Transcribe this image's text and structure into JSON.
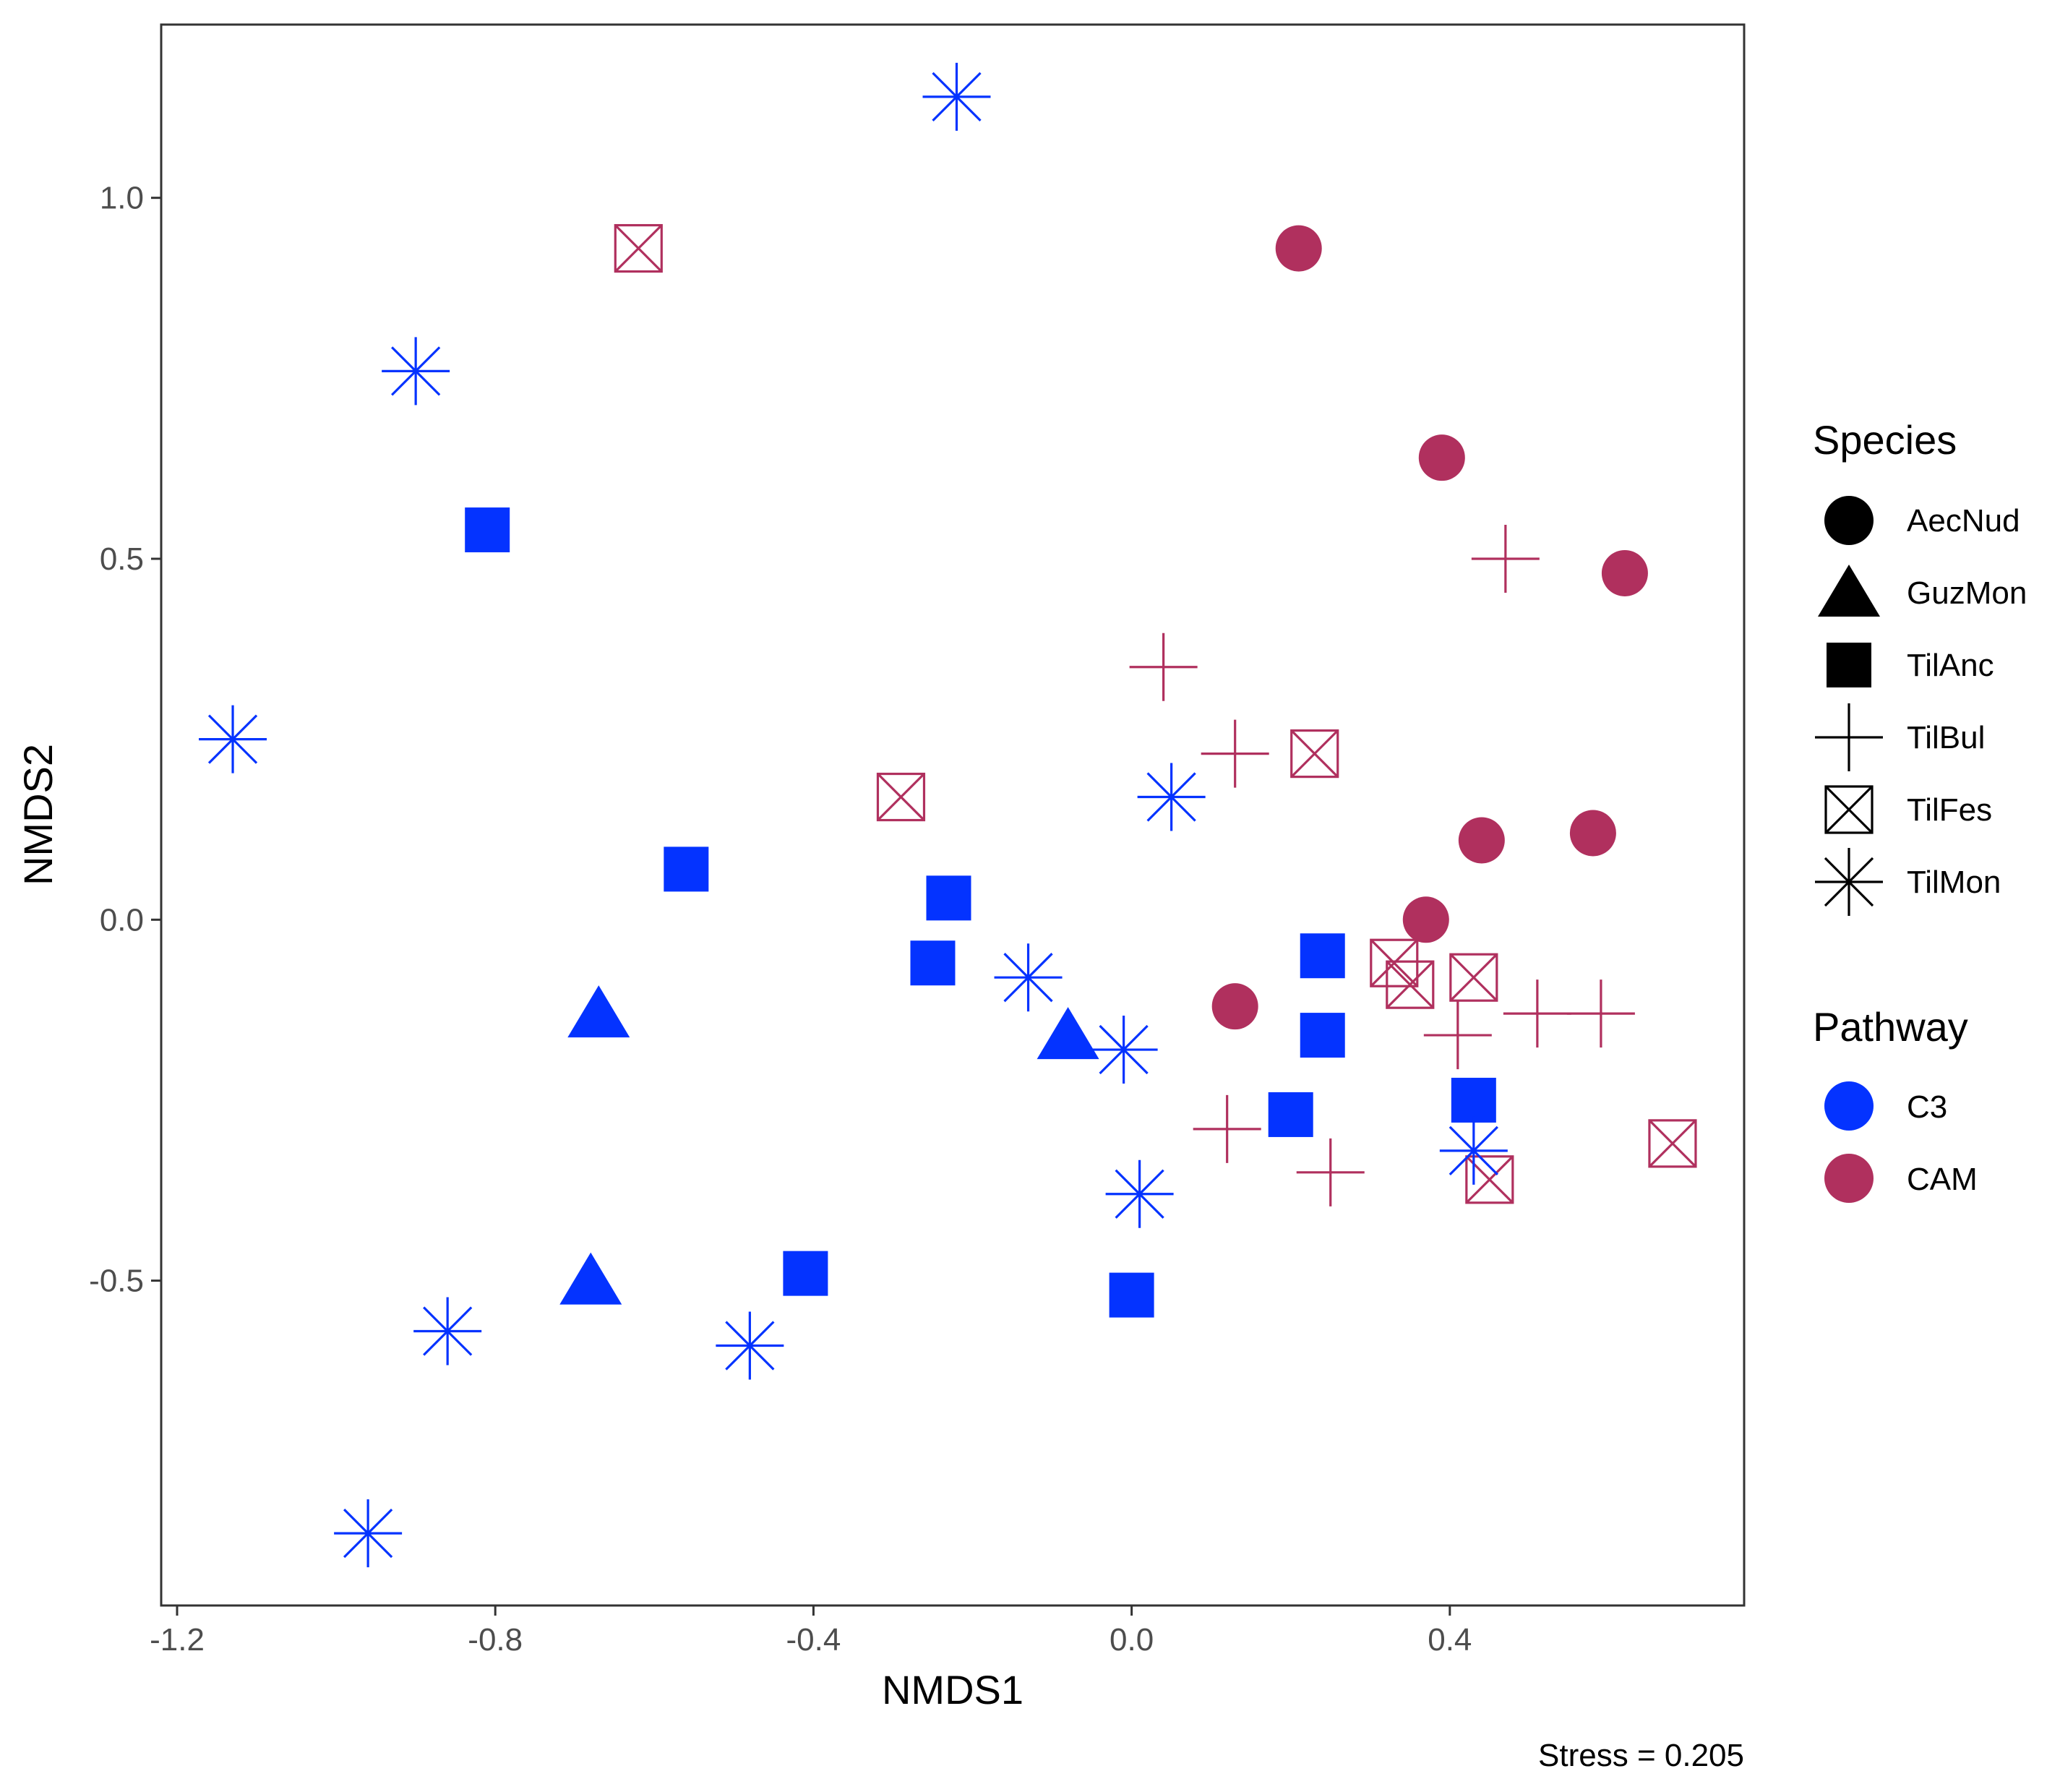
{
  "chart_data": {
    "type": "scatter",
    "title": "",
    "xlabel": "NMDS1",
    "ylabel": "NMDS2",
    "xlim": [
      -1.22,
      0.77
    ],
    "ylim": [
      -0.95,
      1.24
    ],
    "x_ticks": [
      -1.2,
      -0.8,
      -0.4,
      0.0,
      0.4
    ],
    "x_tick_labels": [
      "-1.2",
      "-0.8",
      "-0.4",
      "0.0",
      "0.4"
    ],
    "y_ticks": [
      -0.5,
      0.0,
      0.5,
      1.0
    ],
    "y_tick_labels": [
      "-0.5",
      "0.0",
      "0.5",
      "1.0"
    ],
    "grid": false,
    "annotation": "Stress = 0.205",
    "colors": {
      "C3": "#0433ff",
      "CAM": "#b0305e"
    },
    "legend": {
      "position": "right",
      "species_title": "Species",
      "species": [
        {
          "label": "AecNud",
          "shape": "circle"
        },
        {
          "label": "GuzMon",
          "shape": "triangle"
        },
        {
          "label": "TilAnc",
          "shape": "square"
        },
        {
          "label": "TilBul",
          "shape": "plus"
        },
        {
          "label": "TilFes",
          "shape": "boxx"
        },
        {
          "label": "TilMon",
          "shape": "asterisk"
        }
      ],
      "pathway_title": "Pathway",
      "pathways": [
        {
          "label": "C3",
          "color": "#0433ff"
        },
        {
          "label": "CAM",
          "color": "#b0305e"
        }
      ]
    },
    "points": [
      {
        "species": "AecNud",
        "pathway": "CAM",
        "x": 0.21,
        "y": 0.93
      },
      {
        "species": "AecNud",
        "pathway": "CAM",
        "x": 0.39,
        "y": 0.64
      },
      {
        "species": "AecNud",
        "pathway": "CAM",
        "x": 0.62,
        "y": 0.48
      },
      {
        "species": "AecNud",
        "pathway": "CAM",
        "x": 0.44,
        "y": 0.11
      },
      {
        "species": "AecNud",
        "pathway": "CAM",
        "x": 0.58,
        "y": 0.12
      },
      {
        "species": "AecNud",
        "pathway": "CAM",
        "x": 0.37,
        "y": 0.0
      },
      {
        "species": "AecNud",
        "pathway": "CAM",
        "x": 0.13,
        "y": -0.12
      },
      {
        "species": "GuzMon",
        "pathway": "C3",
        "x": -0.67,
        "y": -0.13
      },
      {
        "species": "GuzMon",
        "pathway": "C3",
        "x": -0.08,
        "y": -0.16
      },
      {
        "species": "GuzMon",
        "pathway": "C3",
        "x": -0.68,
        "y": -0.5
      },
      {
        "species": "TilAnc",
        "pathway": "C3",
        "x": -0.81,
        "y": 0.54
      },
      {
        "species": "TilAnc",
        "pathway": "C3",
        "x": -0.56,
        "y": 0.07
      },
      {
        "species": "TilAnc",
        "pathway": "C3",
        "x": -0.23,
        "y": 0.03
      },
      {
        "species": "TilAnc",
        "pathway": "C3",
        "x": -0.25,
        "y": -0.06
      },
      {
        "species": "TilAnc",
        "pathway": "C3",
        "x": 0.24,
        "y": -0.05
      },
      {
        "species": "TilAnc",
        "pathway": "C3",
        "x": 0.24,
        "y": -0.16
      },
      {
        "species": "TilAnc",
        "pathway": "C3",
        "x": 0.2,
        "y": -0.27
      },
      {
        "species": "TilAnc",
        "pathway": "C3",
        "x": 0.43,
        "y": -0.25
      },
      {
        "species": "TilAnc",
        "pathway": "C3",
        "x": -0.41,
        "y": -0.49
      },
      {
        "species": "TilAnc",
        "pathway": "C3",
        "x": 0.0,
        "y": -0.52
      },
      {
        "species": "TilBul",
        "pathway": "CAM",
        "x": 0.47,
        "y": 0.5
      },
      {
        "species": "TilBul",
        "pathway": "CAM",
        "x": 0.04,
        "y": 0.35
      },
      {
        "species": "TilBul",
        "pathway": "CAM",
        "x": 0.13,
        "y": 0.23
      },
      {
        "species": "TilBul",
        "pathway": "CAM",
        "x": 0.41,
        "y": -0.16
      },
      {
        "species": "TilBul",
        "pathway": "CAM",
        "x": 0.51,
        "y": -0.13
      },
      {
        "species": "TilBul",
        "pathway": "CAM",
        "x": 0.59,
        "y": -0.13
      },
      {
        "species": "TilBul",
        "pathway": "CAM",
        "x": 0.12,
        "y": -0.29
      },
      {
        "species": "TilBul",
        "pathway": "CAM",
        "x": 0.25,
        "y": -0.35
      },
      {
        "species": "TilFes",
        "pathway": "CAM",
        "x": -0.62,
        "y": 0.93
      },
      {
        "species": "TilFes",
        "pathway": "CAM",
        "x": -0.29,
        "y": 0.17
      },
      {
        "species": "TilFes",
        "pathway": "CAM",
        "x": 0.23,
        "y": 0.23
      },
      {
        "species": "TilFes",
        "pathway": "CAM",
        "x": 0.33,
        "y": -0.06
      },
      {
        "species": "TilFes",
        "pathway": "CAM",
        "x": 0.35,
        "y": -0.09
      },
      {
        "species": "TilFes",
        "pathway": "CAM",
        "x": 0.43,
        "y": -0.08
      },
      {
        "species": "TilFes",
        "pathway": "CAM",
        "x": 0.45,
        "y": -0.36
      },
      {
        "species": "TilFes",
        "pathway": "CAM",
        "x": 0.68,
        "y": -0.31
      },
      {
        "species": "TilMon",
        "pathway": "C3",
        "x": -0.22,
        "y": 1.14
      },
      {
        "species": "TilMon",
        "pathway": "C3",
        "x": -0.9,
        "y": 0.76
      },
      {
        "species": "TilMon",
        "pathway": "C3",
        "x": -1.13,
        "y": 0.25
      },
      {
        "species": "TilMon",
        "pathway": "C3",
        "x": 0.05,
        "y": 0.17
      },
      {
        "species": "TilMon",
        "pathway": "C3",
        "x": -0.13,
        "y": -0.08
      },
      {
        "species": "TilMon",
        "pathway": "C3",
        "x": -0.01,
        "y": -0.18
      },
      {
        "species": "TilMon",
        "pathway": "C3",
        "x": 0.01,
        "y": -0.38
      },
      {
        "species": "TilMon",
        "pathway": "C3",
        "x": 0.43,
        "y": -0.32
      },
      {
        "species": "TilMon",
        "pathway": "C3",
        "x": -0.86,
        "y": -0.57
      },
      {
        "species": "TilMon",
        "pathway": "C3",
        "x": -0.48,
        "y": -0.59
      },
      {
        "species": "TilMon",
        "pathway": "C3",
        "x": -0.96,
        "y": -0.85
      }
    ]
  }
}
